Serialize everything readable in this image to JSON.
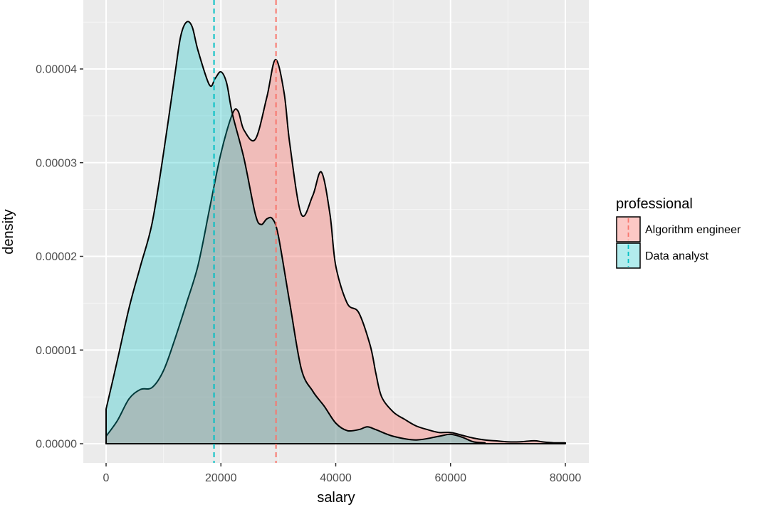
{
  "chart_data": {
    "type": "area",
    "xlabel": "salary",
    "ylabel": "density",
    "xlim": [
      -4000,
      84000
    ],
    "ylim": [
      -2.1e-06,
      4.72e-05
    ],
    "x_ticks": [
      0,
      20000,
      40000,
      60000,
      80000
    ],
    "x_tick_labels": [
      "0",
      "20000",
      "40000",
      "60000",
      "80000"
    ],
    "y_ticks": [
      0,
      1e-05,
      2e-05,
      3e-05,
      4e-05
    ],
    "y_tick_labels": [
      "0.00000",
      "0.00001",
      "0.00002",
      "0.00003",
      "0.00004"
    ],
    "grid": true,
    "legend": {
      "title": "professional",
      "placement": "right",
      "entries": [
        "Algorithm engineer",
        "Data analyst"
      ]
    },
    "series": [
      {
        "name": "Algorithm engineer",
        "color": "#F8766D",
        "fill": "rgba(248,118,109,0.4)",
        "mean": 29600,
        "x": [
          0,
          2000,
          4000,
          6000,
          8000,
          10000,
          12000,
          14000,
          16000,
          18000,
          20000,
          22000,
          23000,
          24000,
          26000,
          28000,
          29500,
          31000,
          32000,
          34000,
          36000,
          37500,
          39000,
          40000,
          42000,
          44000,
          46000,
          47000,
          48000,
          50000,
          52000,
          54000,
          56000,
          58000,
          60000,
          62000,
          64000,
          66000,
          68000,
          70000,
          72000,
          74000,
          75000,
          76000,
          78000,
          80000
        ],
        "y": [
          8e-07,
          2.5e-06,
          4.8e-06,
          5.8e-06,
          6e-06,
          7.8e-06,
          1.12e-05,
          1.5e-05,
          1.9e-05,
          2.5e-05,
          3.1e-05,
          3.52e-05,
          3.55e-05,
          3.35e-05,
          3.25e-05,
          3.7e-05,
          4.1e-05,
          3.75e-05,
          3.2e-05,
          2.45e-05,
          2.65e-05,
          2.9e-05,
          2.45e-05,
          1.9e-05,
          1.5e-05,
          1.4e-05,
          1.05e-05,
          7.5e-06,
          5e-06,
          3.4e-06,
          2.6e-06,
          1.9e-06,
          1.5e-06,
          1.2e-06,
          1.2e-06,
          9e-07,
          6e-07,
          4e-07,
          3e-07,
          2e-07,
          2e-07,
          3e-07,
          3e-07,
          2e-07,
          1e-07,
          1e-07
        ]
      },
      {
        "name": "Data analyst",
        "color": "#00BFC4",
        "fill": "rgba(0,191,196,0.3)",
        "mean": 18800,
        "x": [
          0,
          2000,
          4000,
          6000,
          8000,
          10000,
          12000,
          13000,
          14000,
          15000,
          16000,
          18000,
          19000,
          20000,
          21000,
          22000,
          24000,
          26000,
          27000,
          28000,
          29000,
          30000,
          32000,
          34000,
          36000,
          38000,
          40000,
          42000,
          44000,
          45500,
          47000,
          50000,
          54000,
          58000,
          60000,
          62000,
          64000,
          66000
        ],
        "y": [
          3.7e-06,
          9e-06,
          1.45e-05,
          1.9e-05,
          2.35e-05,
          3.1e-05,
          3.95e-05,
          4.35e-05,
          4.5e-05,
          4.45e-05,
          4.2e-05,
          3.83e-05,
          3.9e-05,
          3.97e-05,
          3.85e-05,
          3.52e-05,
          3.05e-05,
          2.45e-05,
          2.34e-05,
          2.4e-05,
          2.4e-05,
          2.22e-05,
          1.5e-05,
          8e-06,
          5.6e-06,
          4e-06,
          2.2e-06,
          1.4e-06,
          1.5e-06,
          1.8e-06,
          1.5e-06,
          8e-07,
          4e-07,
          8e-07,
          1e-06,
          7e-07,
          2e-07,
          1e-07
        ]
      }
    ]
  }
}
